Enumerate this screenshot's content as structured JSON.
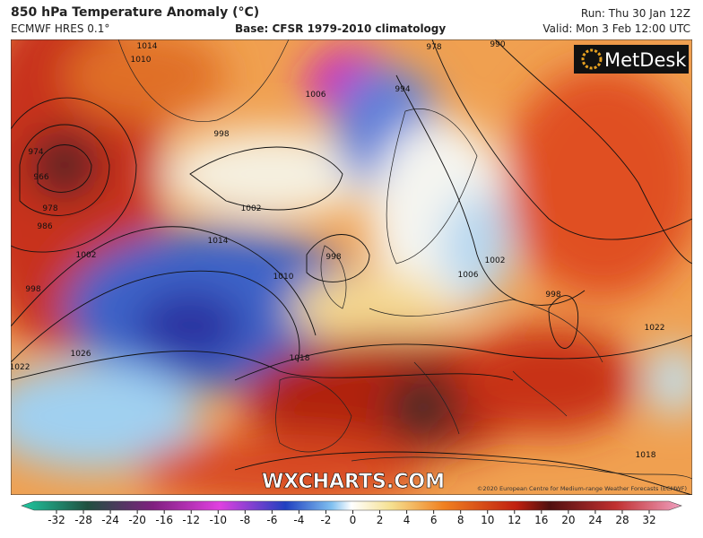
{
  "header": {
    "title": "850 hPa Temperature Anomaly (°C)",
    "model": "ECMWF HRES 0.1°",
    "base": "Base: CFSR 1979-2010 climatology",
    "run": "Run: Thu 30 Jan 12Z",
    "valid": "Valid: Mon 3 Feb 12:00 UTC"
  },
  "map": {
    "logo": "MetDesk",
    "watermark": "WXCHARTS.COM",
    "copyright": "©2020 European Centre for Medium-range Weather Forecasts (ECMWF)",
    "isobar_labels": [
      "1014",
      "1010",
      "990",
      "978",
      "1006",
      "998",
      "994",
      "1002",
      "1014",
      "1010",
      "998",
      "1002",
      "1006",
      "998",
      "1018",
      "1026",
      "1022",
      "998",
      "1002",
      "986",
      "978",
      "966",
      "974",
      "1022",
      "1018"
    ]
  },
  "colorbar": {
    "ticks": [
      -32,
      -28,
      -24,
      -20,
      -16,
      -12,
      -10,
      -8,
      -6,
      -4,
      -2,
      0,
      2,
      4,
      6,
      8,
      10,
      12,
      16,
      20,
      24,
      28,
      32
    ]
  }
}
